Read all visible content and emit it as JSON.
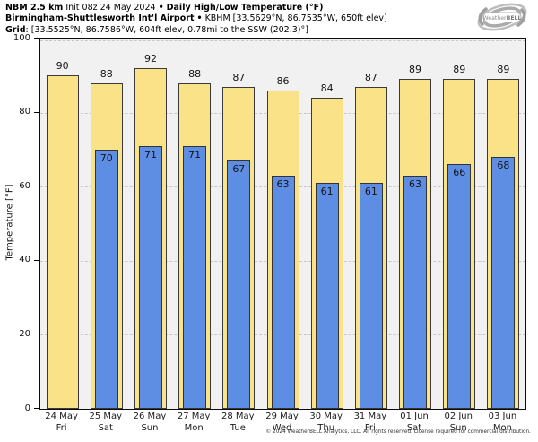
{
  "header": {
    "model": "NBM 2.5 km",
    "init_info": "Init 08z 24 May 2024",
    "bullet": "•",
    "product_title": "Daily High/Low Temperature (°F)",
    "station_name": "Birmingham-Shuttlesworth Int'l Airport",
    "station_info": "KBHM [33.5629°N, 86.7535°W, 650ft elev]",
    "grid_label": "Grid",
    "grid_info": ": [33.5525°N, 86.7586°W, 604ft elev, 0.78mi to the SSW (202.3)°]"
  },
  "logo": {
    "weather": "Weather",
    "bell": "BELL"
  },
  "chart_data": {
    "type": "bar",
    "title": "Daily High/Low Temperature (°F)",
    "ylabel": "Temperature [°F]",
    "ylim": [
      0,
      100
    ],
    "yticks": [
      0,
      20,
      40,
      60,
      80,
      100
    ],
    "grid": true,
    "legend_position": "none",
    "categories": [
      {
        "date": "24 May",
        "day": "Fri"
      },
      {
        "date": "25 May",
        "day": "Sat"
      },
      {
        "date": "26 May",
        "day": "Sun"
      },
      {
        "date": "27 May",
        "day": "Mon"
      },
      {
        "date": "28 May",
        "day": "Tue"
      },
      {
        "date": "29 May",
        "day": "Wed"
      },
      {
        "date": "30 May",
        "day": "Thu"
      },
      {
        "date": "31 May",
        "day": "Fri"
      },
      {
        "date": "01 Jun",
        "day": "Sat"
      },
      {
        "date": "02 Jun",
        "day": "Sun"
      },
      {
        "date": "03 Jun",
        "day": "Mon"
      }
    ],
    "series": [
      {
        "name": "Daily High",
        "color": "#f9e288",
        "values": [
          90,
          88,
          92,
          88,
          87,
          86,
          84,
          87,
          89,
          89,
          89
        ]
      },
      {
        "name": "Daily Low",
        "color": "#5e8ee4",
        "values": [
          null,
          70,
          71,
          71,
          67,
          63,
          61,
          61,
          63,
          66,
          68
        ]
      }
    ]
  },
  "colors": {
    "plot_background": "#f1f1f1",
    "bar_border": "#3b3b3b",
    "gridline": "#c7c7c7",
    "frame": "#0c0c0c"
  },
  "footer": {
    "copyright": "© 2024 WeatherBELL Analytics, LLC. All rights reserved. License required for commercial distribution."
  }
}
